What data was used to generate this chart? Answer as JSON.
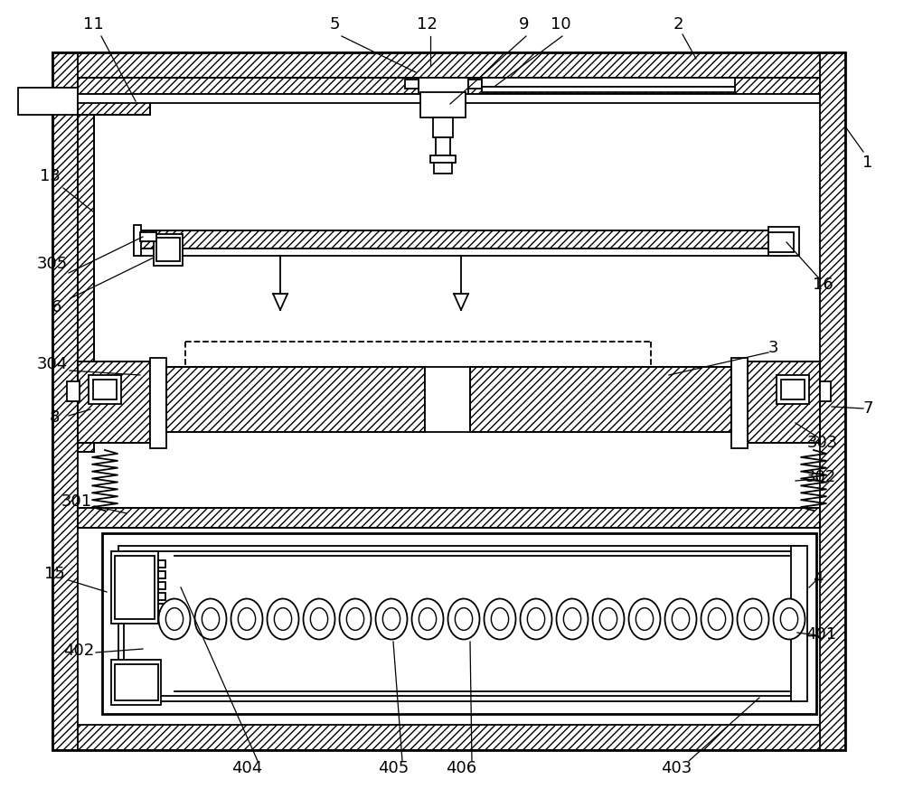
{
  "bg_color": "#ffffff",
  "line_color": "#000000",
  "lw": 1.3,
  "lw_thick": 2.0
}
